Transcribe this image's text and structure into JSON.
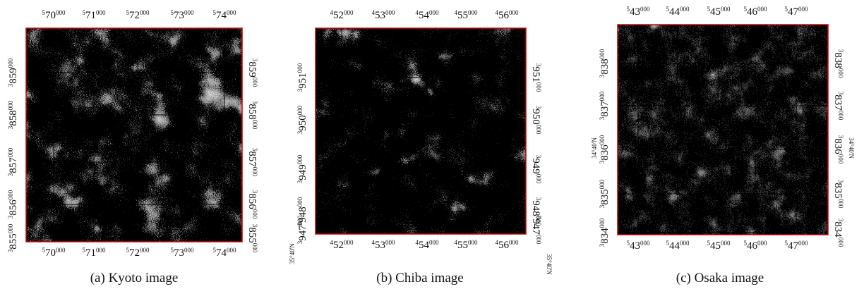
{
  "panels": [
    {
      "caption": "(a) Kyoto image",
      "x_labels": [
        "570000",
        "571000",
        "572000",
        "573000",
        "574000"
      ],
      "y_labels": [
        "3859000",
        "3858000",
        "3857000",
        "3856000",
        "3855000"
      ]
    },
    {
      "caption": "(b) Chiba image",
      "x_labels": [
        "452000",
        "453000",
        "454000",
        "455000",
        "456000"
      ],
      "y_labels": [
        "3951000",
        "3950000",
        "3949000",
        "3948000",
        "3947000"
      ],
      "annotation": "35°40'N"
    },
    {
      "caption": "(c) Osaka image",
      "x_labels": [
        "543000",
        "544000",
        "545000",
        "546000",
        "547000"
      ],
      "y_labels": [
        "3838000",
        "3837000",
        "3836000",
        "3835000",
        "3834000"
      ],
      "annotation": "34°40'N"
    }
  ]
}
